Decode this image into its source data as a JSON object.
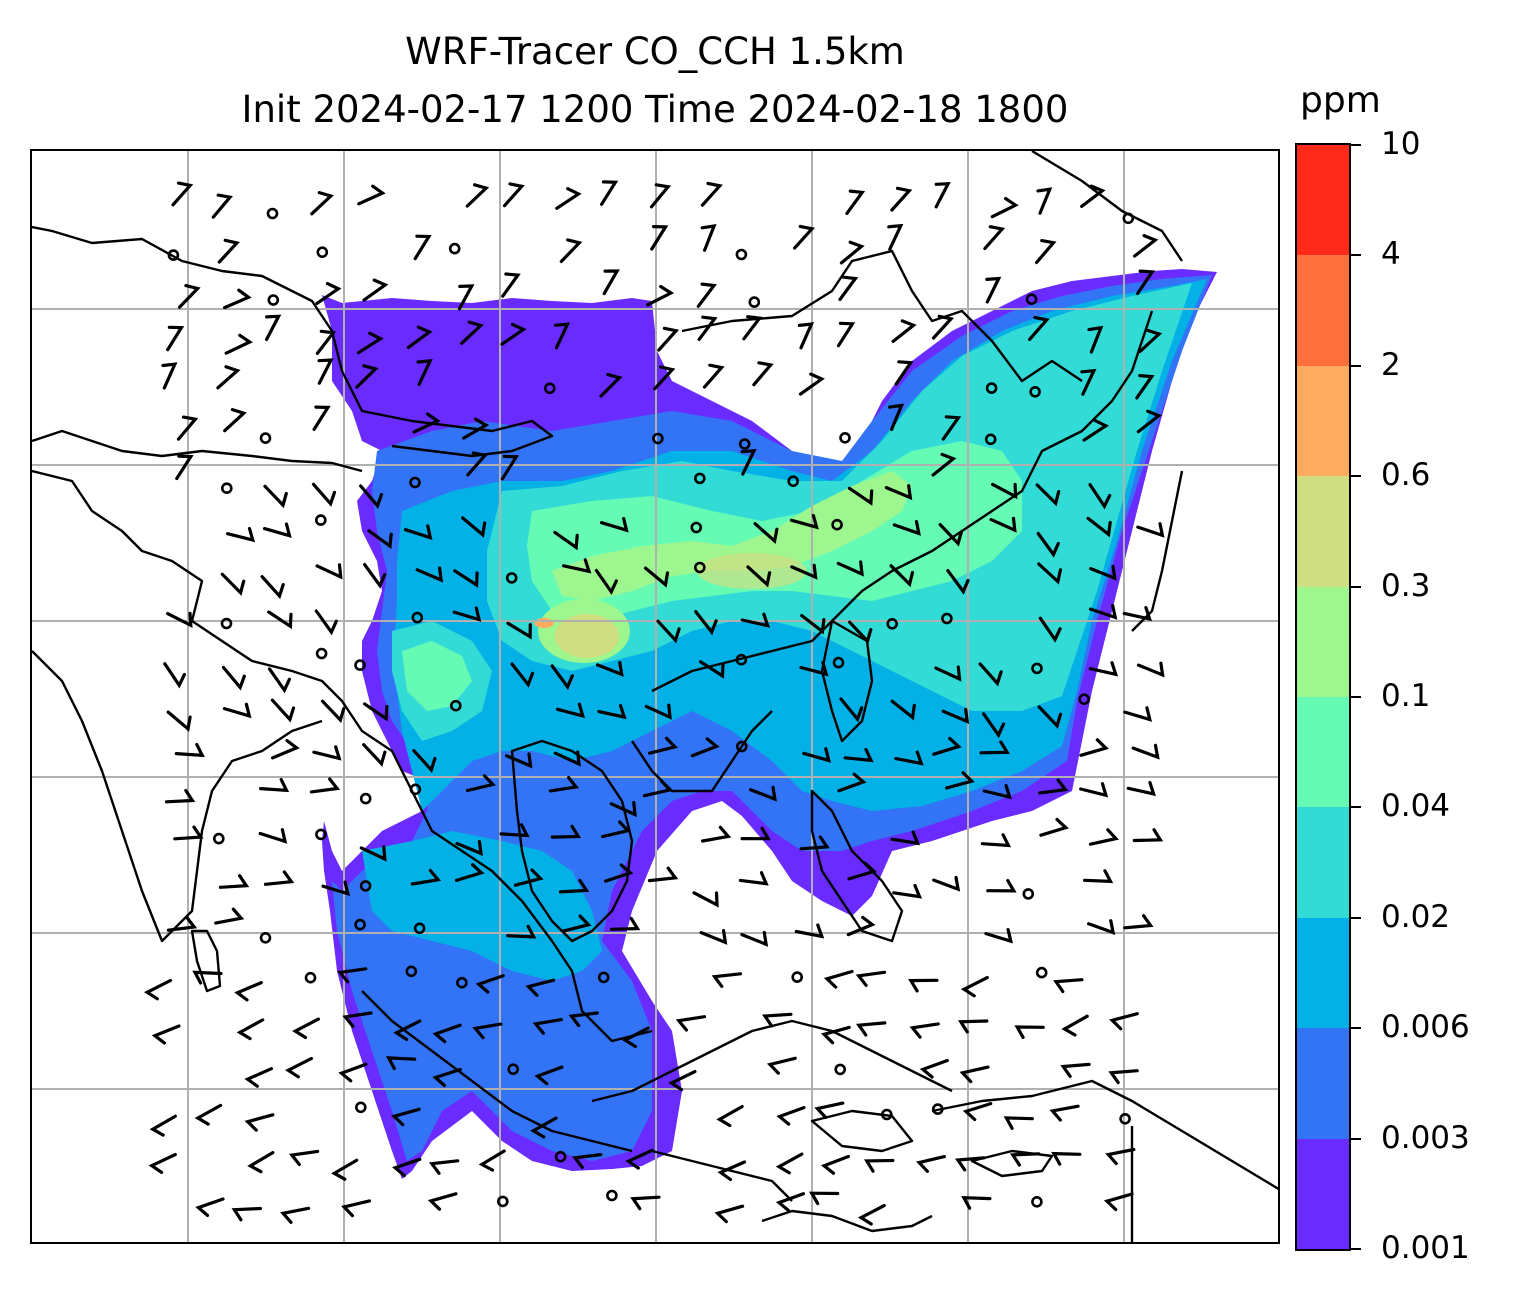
{
  "title": {
    "line1": "WRF-Tracer CO_CCH 1.5km",
    "line2": "Init 2024-02-17 1200 Time 2024-02-18 1800"
  },
  "colorbar": {
    "unit": "ppm",
    "levels": [
      "0.001",
      "0.003",
      "0.006",
      "0.02",
      "0.04",
      "0.1",
      "0.3",
      "0.6",
      "2",
      "4",
      "10"
    ],
    "colors": [
      "#6a2bff",
      "#3374f6",
      "#03b1e6",
      "#32dbd5",
      "#66fbb5",
      "#9ef68f",
      "#d0de82",
      "#ffac61",
      "#ff703e",
      "#ff2a19"
    ]
  },
  "map": {
    "coastline_color": "#000000",
    "gridline_color": "#b0b0b0",
    "plume_colors": {
      "outer": "#6a2bff",
      "low": "#3374f6",
      "mid": "#03b1e6",
      "high": "#32dbd5",
      "higher": "#66fbb5",
      "peak": "#9ef68f",
      "core": "#d0de82",
      "hotspot": "#ffac61"
    }
  }
}
